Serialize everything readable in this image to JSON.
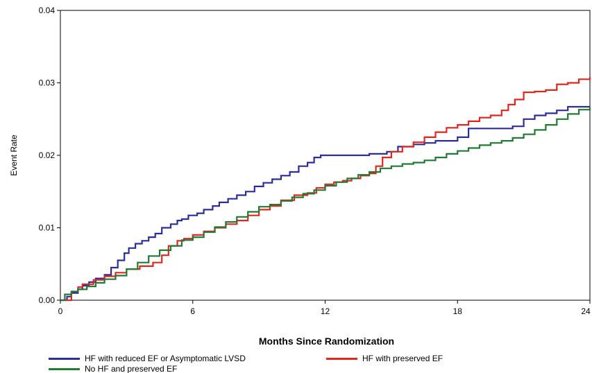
{
  "chart_data": {
    "type": "line",
    "step": true,
    "xlabel": "Months Since Randomization",
    "ylabel": "Event Rate",
    "xlim": [
      0,
      24
    ],
    "ylim": [
      0,
      0.04
    ],
    "x_ticks": [
      "0",
      "6",
      "12",
      "18",
      "24"
    ],
    "y_ticks": [
      "0.00",
      "0.01",
      "0.02",
      "0.03",
      "0.04"
    ],
    "grid": false,
    "legend_position": "bottom",
    "series": [
      {
        "name": "HF with reduced EF or Asymptomatic LVSD",
        "color": "#2b2d9b",
        "x": [
          0,
          0.3,
          0.5,
          0.8,
          1.0,
          1.3,
          1.6,
          2.0,
          2.3,
          2.6,
          2.9,
          3.1,
          3.4,
          3.7,
          4.0,
          4.3,
          4.6,
          5.0,
          5.3,
          5.5,
          5.8,
          6.2,
          6.5,
          6.9,
          7.2,
          7.6,
          8.0,
          8.4,
          8.8,
          9.2,
          9.6,
          10.0,
          10.4,
          10.8,
          11.2,
          11.5,
          11.8,
          12.0,
          12.3,
          13.0,
          14.0,
          14.8,
          15.3,
          16.0,
          16.5,
          17.0,
          17.5,
          18.0,
          18.5,
          19.0,
          20.5,
          21.0,
          21.5,
          22.0,
          22.5,
          23.0,
          24.0
        ],
        "y": [
          0,
          0.0005,
          0.001,
          0.0015,
          0.002,
          0.0025,
          0.003,
          0.0035,
          0.0045,
          0.0055,
          0.0065,
          0.0072,
          0.0078,
          0.0082,
          0.0087,
          0.0092,
          0.01,
          0.0105,
          0.011,
          0.0112,
          0.0117,
          0.012,
          0.0125,
          0.013,
          0.0135,
          0.014,
          0.0145,
          0.015,
          0.0157,
          0.0162,
          0.0167,
          0.0172,
          0.0177,
          0.0185,
          0.019,
          0.0197,
          0.02,
          0.02,
          0.02,
          0.02,
          0.0202,
          0.0205,
          0.0212,
          0.0215,
          0.0217,
          0.022,
          0.022,
          0.0225,
          0.0237,
          0.0237,
          0.024,
          0.025,
          0.0255,
          0.0258,
          0.0262,
          0.0267,
          0.0267
        ]
      },
      {
        "name": "HF with preserved EF",
        "color": "#e0261d",
        "x": [
          0,
          0.5,
          0.8,
          1.0,
          1.5,
          2.0,
          2.5,
          3.0,
          3.6,
          4.2,
          4.6,
          4.9,
          5.3,
          5.6,
          6.0,
          6.5,
          7.0,
          7.5,
          8.0,
          8.5,
          9.0,
          9.5,
          10.0,
          10.6,
          11.2,
          11.6,
          12.0,
          12.4,
          12.8,
          13.2,
          13.6,
          14.0,
          14.3,
          14.6,
          15.0,
          15.5,
          16.0,
          16.5,
          17.0,
          17.5,
          18.0,
          18.5,
          19.0,
          19.5,
          20.0,
          20.3,
          20.6,
          21.0,
          21.5,
          22.0,
          22.5,
          23.0,
          23.5,
          24.0
        ],
        "y": [
          0,
          0.0012,
          0.0018,
          0.0022,
          0.0028,
          0.0033,
          0.0038,
          0.0043,
          0.0047,
          0.0052,
          0.0062,
          0.0075,
          0.0082,
          0.0085,
          0.009,
          0.0095,
          0.01,
          0.0105,
          0.011,
          0.0117,
          0.0125,
          0.013,
          0.0138,
          0.0145,
          0.0148,
          0.0155,
          0.016,
          0.0163,
          0.0165,
          0.0168,
          0.0172,
          0.0175,
          0.0185,
          0.0197,
          0.0205,
          0.0212,
          0.0218,
          0.0225,
          0.0232,
          0.0238,
          0.0242,
          0.0247,
          0.0252,
          0.0255,
          0.0262,
          0.027,
          0.0277,
          0.0287,
          0.0288,
          0.029,
          0.0298,
          0.03,
          0.0305,
          0.0308
        ]
      },
      {
        "name": "No HF and preserved EF",
        "color": "#1e7b32",
        "x": [
          0,
          0.2,
          0.5,
          0.8,
          1.2,
          1.6,
          2.0,
          2.5,
          3.0,
          3.5,
          4.0,
          4.5,
          5.0,
          5.5,
          6.0,
          6.5,
          7.0,
          7.5,
          8.0,
          8.5,
          9.0,
          9.5,
          10.0,
          10.5,
          11.0,
          11.5,
          12.0,
          12.5,
          13.0,
          13.5,
          14.0,
          14.5,
          15.0,
          15.5,
          16.0,
          16.5,
          17.0,
          17.5,
          18.0,
          18.5,
          19.0,
          19.5,
          20.0,
          20.5,
          21.0,
          21.5,
          22.0,
          22.5,
          23.0,
          23.5,
          24.0
        ],
        "y": [
          0,
          0.0008,
          0.0012,
          0.0015,
          0.0019,
          0.0024,
          0.0029,
          0.0034,
          0.0043,
          0.0052,
          0.0061,
          0.0069,
          0.0075,
          0.0083,
          0.0087,
          0.0094,
          0.0101,
          0.0108,
          0.0115,
          0.0122,
          0.0129,
          0.0132,
          0.0137,
          0.0142,
          0.0147,
          0.0152,
          0.0158,
          0.0163,
          0.0168,
          0.0173,
          0.0177,
          0.0182,
          0.0185,
          0.0188,
          0.019,
          0.0193,
          0.0197,
          0.0202,
          0.0206,
          0.021,
          0.0214,
          0.0217,
          0.022,
          0.0224,
          0.0229,
          0.0235,
          0.0242,
          0.025,
          0.0257,
          0.0263,
          0.0266
        ]
      }
    ]
  }
}
